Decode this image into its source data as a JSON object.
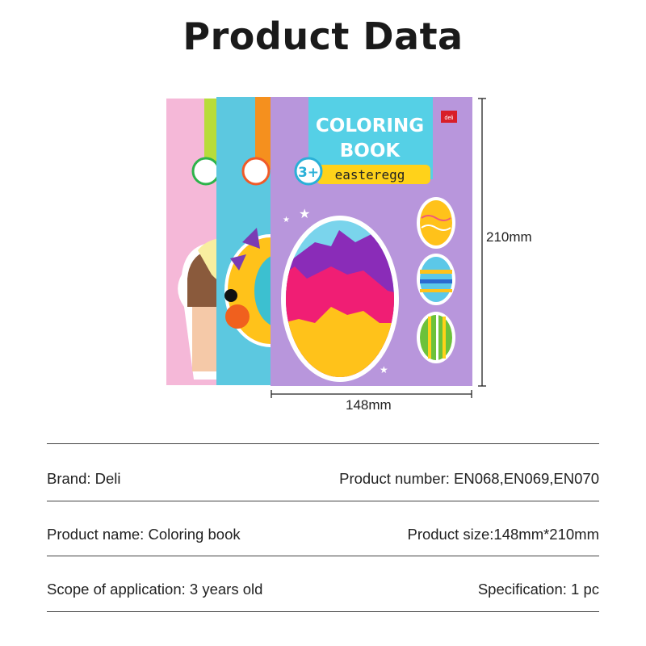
{
  "header": {
    "title": "Product Data"
  },
  "image": {
    "cover_title_line1": "COLORING",
    "cover_title_line2": "BOOK",
    "cover_subtitle": "easteregg",
    "age_badge": "3+",
    "brand_logo": "deli",
    "colors": {
      "pink_book": "#f5b8d8",
      "blue_book": "#5cc8e0",
      "purple_book": "#b896dc",
      "header_cyan": "#55d0e6",
      "header_yellow": "#ffd21a"
    }
  },
  "dimensions": {
    "height": "210mm",
    "width": "148mm"
  },
  "specs": [
    {
      "left": "Brand: Deli",
      "right": "Product number: EN068,EN069,EN070"
    },
    {
      "left": "Product name: Coloring book",
      "right": "Product size:148mm*210mm"
    },
    {
      "left": "Scope of application: 3 years old",
      "right": "Specification: 1 pc"
    }
  ]
}
